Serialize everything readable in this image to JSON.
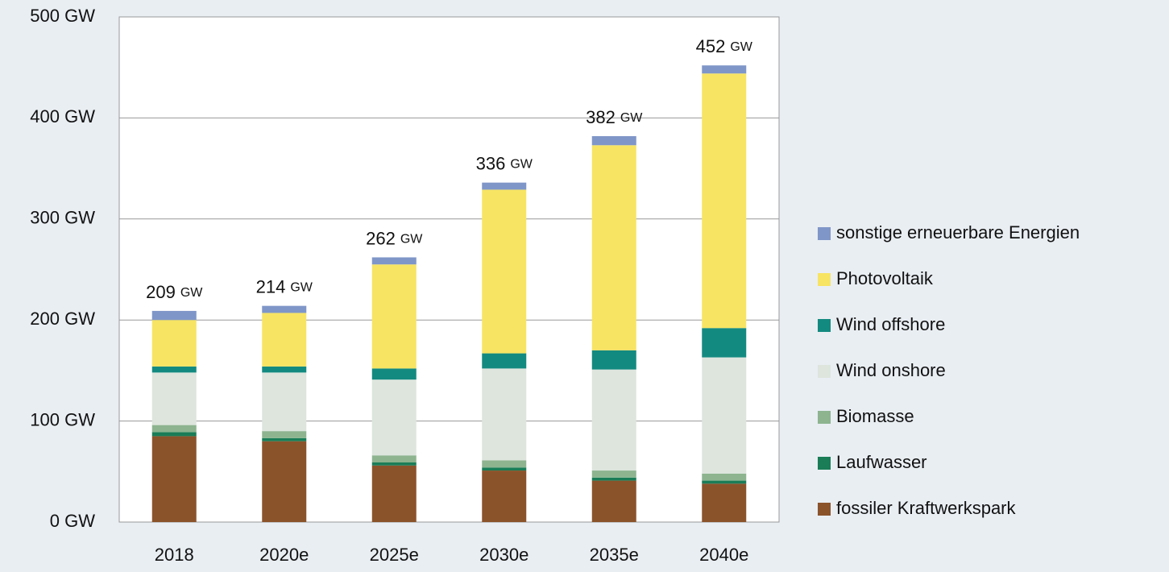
{
  "chart_data": {
    "type": "stacked_bar",
    "categories": [
      "2018",
      "2020e",
      "2025e",
      "2030e",
      "2035e",
      "2040e"
    ],
    "series": [
      {
        "name": "fossiler Kraftwerkspark",
        "color": "#8b532a",
        "values": [
          85,
          80,
          56,
          51,
          41,
          38
        ]
      },
      {
        "name": "Laufwasser",
        "color": "#1a7d57",
        "values": [
          4,
          3,
          3,
          3,
          3,
          3
        ]
      },
      {
        "name": "Biomasse",
        "color": "#8db48f",
        "values": [
          7,
          7,
          7,
          7,
          7,
          7
        ]
      },
      {
        "name": "Wind onshore",
        "color": "#dde5dd",
        "values": [
          52,
          58,
          75,
          91,
          100,
          115
        ]
      },
      {
        "name": "Wind offshore",
        "color": "#138a80",
        "values": [
          6,
          6,
          11,
          15,
          19,
          29
        ]
      },
      {
        "name": "Photovoltaik",
        "color": "#f7e463",
        "values": [
          46,
          53,
          103,
          162,
          203,
          252
        ]
      },
      {
        "name": "sonstige erneuerbare Energien",
        "color": "#7f96c8",
        "values": [
          9,
          7,
          7,
          7,
          9,
          8
        ]
      }
    ],
    "totals": [
      209,
      214,
      262,
      336,
      382,
      452
    ],
    "total_unit": "GW",
    "ylim": [
      0,
      500
    ],
    "yticks": [
      {
        "value": 0,
        "label": "0 GW"
      },
      {
        "value": 100,
        "label": "100 GW"
      },
      {
        "value": 200,
        "label": "200 GW"
      },
      {
        "value": 300,
        "label": "300 GW"
      },
      {
        "value": 400,
        "label": "400 GW"
      },
      {
        "value": 500,
        "label": "500 GW"
      }
    ],
    "grid": true,
    "legend": "right"
  }
}
